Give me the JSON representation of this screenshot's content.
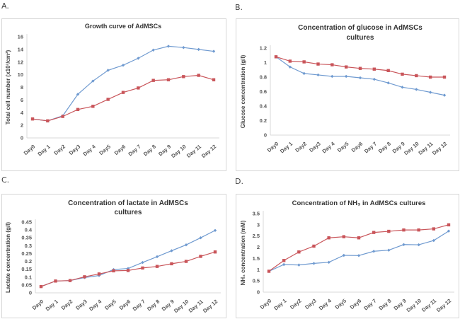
{
  "panels": [
    "A.",
    "B.",
    "C.",
    "D."
  ],
  "colors": {
    "series_blue": "#6f9ad0",
    "series_red": "#c9555a",
    "axis": "#d9d9d9"
  },
  "chart_data": [
    {
      "type": "line",
      "title": "Growth curve of AdMSCs",
      "title_lines": [
        "Growth curve of AdMSCs"
      ],
      "xlabel": "",
      "ylabel": "Total cell number (x10³/cm²)",
      "ylim": [
        0,
        16
      ],
      "yticks": [
        "0",
        "2",
        "4",
        "6",
        "8",
        "10",
        "12",
        "14",
        "16"
      ],
      "ytick_values": [
        0,
        2,
        4,
        6,
        8,
        10,
        12,
        14,
        16
      ],
      "categories": [
        "Day0",
        "Day 1",
        "Day2",
        "Day3",
        "Day 4",
        "Day5",
        "Day6",
        "Day 7",
        "Day 8",
        "Day 9",
        "Day 10",
        "Day 11",
        "Day 12"
      ],
      "grid": false,
      "legend": "none",
      "series": [
        {
          "name": "series-blue",
          "color": "#6f9ad0",
          "marker": "diamond",
          "values": [
            3.0,
            2.7,
            3.5,
            6.9,
            9.0,
            10.7,
            11.5,
            12.6,
            13.9,
            14.5,
            14.3,
            14.0,
            13.7
          ]
        },
        {
          "name": "series-red",
          "color": "#c9555a",
          "marker": "square",
          "values": [
            3.0,
            2.7,
            3.4,
            4.5,
            5.0,
            6.1,
            7.2,
            7.9,
            9.1,
            9.2,
            9.7,
            9.9,
            9.2
          ]
        }
      ]
    },
    {
      "type": "line",
      "title": "Concentration of glucose in AdMSCs cultures",
      "title_lines": [
        "Concentration of glucose in AdMSCs",
        "cultures"
      ],
      "xlabel": "",
      "ylabel": "Glucose concentration (g/l)",
      "ylim": [
        0,
        1.2
      ],
      "yticks": [
        "0",
        "0.2",
        "0.4",
        "0.6",
        "0.8",
        "1",
        "1.2"
      ],
      "ytick_values": [
        0,
        0.2,
        0.4,
        0.6,
        0.8,
        1.0,
        1.2
      ],
      "categories": [
        "Day0",
        "Day 1",
        "Day2",
        "Day3",
        "Day 4",
        "Day5",
        "Day6",
        "Day 7",
        "Day 8",
        "Day 9",
        "Day 10",
        "Day 11",
        "Day 12"
      ],
      "grid": false,
      "legend": "none",
      "series": [
        {
          "name": "series-blue",
          "color": "#6f9ad0",
          "marker": "diamond",
          "values": [
            1.08,
            0.94,
            0.85,
            0.83,
            0.81,
            0.81,
            0.79,
            0.77,
            0.72,
            0.66,
            0.63,
            0.59,
            0.55
          ]
        },
        {
          "name": "series-red",
          "color": "#c9555a",
          "marker": "square",
          "values": [
            1.08,
            1.02,
            1.01,
            0.98,
            0.97,
            0.94,
            0.92,
            0.91,
            0.89,
            0.84,
            0.82,
            0.8,
            0.8
          ]
        }
      ]
    },
    {
      "type": "line",
      "title": "Concentration of lactate in AdMSCs cultures",
      "title_lines": [
        "Concentration of lactate in AdMSCs",
        "cultures"
      ],
      "xlabel": "",
      "ylabel": "Lactate concentration (g/l)",
      "ylim": [
        0,
        0.45
      ],
      "yticks": [
        "0",
        "0.05",
        "0.1",
        "0.15",
        "0.2",
        "0.25",
        "0.3",
        "0.35",
        "0.4",
        "0.45"
      ],
      "ytick_values": [
        0,
        0.05,
        0.1,
        0.15,
        0.2,
        0.25,
        0.3,
        0.35,
        0.4,
        0.45
      ],
      "categories": [
        "Day0",
        "Day 1",
        "Day2",
        "Day3",
        "Day 4",
        "Day5",
        "Day6",
        "Day 7",
        "Day 8",
        "Day 9",
        "Day 10",
        "Day 11",
        "Day 12"
      ],
      "grid": false,
      "legend": "none",
      "series": [
        {
          "name": "series-blue",
          "color": "#6f9ad0",
          "marker": "diamond",
          "values": [
            0.04,
            0.075,
            0.078,
            0.097,
            0.11,
            0.148,
            0.155,
            0.193,
            0.23,
            0.268,
            0.305,
            0.35,
            0.397
          ]
        },
        {
          "name": "series-red",
          "color": "#c9555a",
          "marker": "square",
          "values": [
            0.04,
            0.075,
            0.078,
            0.102,
            0.12,
            0.14,
            0.142,
            0.158,
            0.168,
            0.185,
            0.2,
            0.232,
            0.26
          ]
        }
      ]
    },
    {
      "type": "line",
      "title": "Concentration of NH₃ in AdMSCs cultures",
      "title_lines": [
        "Concentration of NH₃ in AdMSCs cultures"
      ],
      "xlabel": "",
      "ylabel": "NH₃ concentration (mM)",
      "ylim": [
        0,
        3.5
      ],
      "yticks": [
        "0",
        "0.5",
        "1",
        "1.5",
        "2",
        "2.5",
        "3",
        "3.5"
      ],
      "ytick_values": [
        0,
        0.5,
        1,
        1.5,
        2,
        2.5,
        3,
        3.5
      ],
      "categories": [
        "Day0",
        "Day 1",
        "Day2",
        "Day3",
        "Day 4",
        "Day5",
        "Day6",
        "Day 7",
        "Day 8",
        "Day 9",
        "Day 10",
        "Day 11",
        "Day 12"
      ],
      "grid": false,
      "legend": "none",
      "series": [
        {
          "name": "series-blue",
          "color": "#6f9ad0",
          "marker": "diamond",
          "values": [
            0.93,
            1.23,
            1.21,
            1.28,
            1.33,
            1.64,
            1.63,
            1.82,
            1.87,
            2.12,
            2.11,
            2.3,
            2.72
          ]
        },
        {
          "name": "series-red",
          "color": "#c9555a",
          "marker": "square",
          "values": [
            0.93,
            1.41,
            1.79,
            2.05,
            2.42,
            2.47,
            2.42,
            2.66,
            2.71,
            2.77,
            2.77,
            2.82,
            3.0
          ]
        }
      ]
    }
  ]
}
